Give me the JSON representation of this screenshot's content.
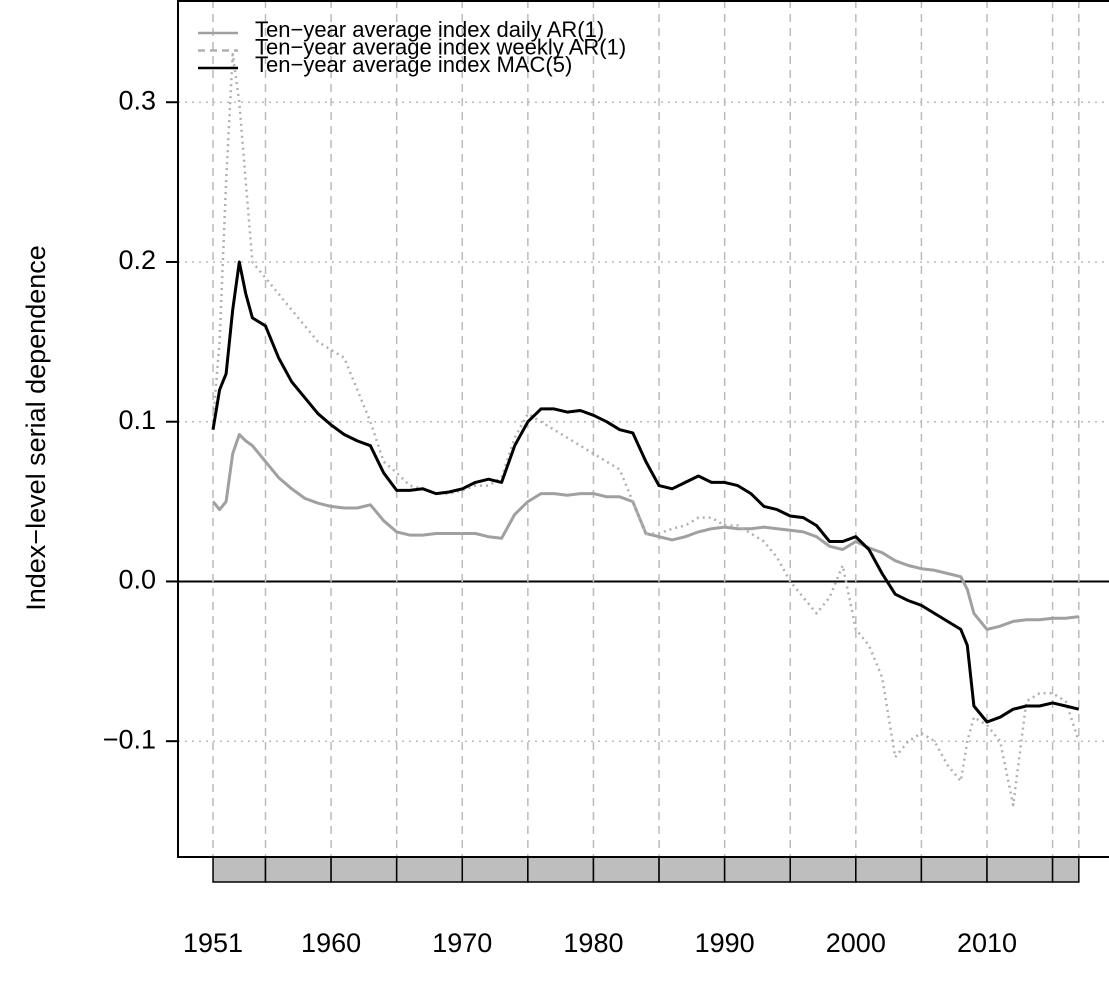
{
  "chart_data": {
    "type": "line",
    "y_label": "Index−level serial dependence",
    "x": [
      1951,
      1951.5,
      1952,
      1952.5,
      1953,
      1953.5,
      1954,
      1955,
      1956,
      1957,
      1958,
      1959,
      1960,
      1961,
      1962,
      1963,
      1964,
      1965,
      1966,
      1967,
      1968,
      1969,
      1970,
      1971,
      1972,
      1973,
      1974,
      1975,
      1976,
      1977,
      1978,
      1979,
      1980,
      1981,
      1982,
      1983,
      1984,
      1985,
      1986,
      1987,
      1988,
      1989,
      1990,
      1991,
      1992,
      1993,
      1994,
      1995,
      1996,
      1997,
      1998,
      1999,
      2000,
      2001,
      2002,
      2003,
      2004,
      2005,
      2006,
      2007,
      2008,
      2008.5,
      2009,
      2010,
      2011,
      2012,
      2013,
      2014,
      2015,
      2016,
      2017
    ],
    "series": [
      {
        "name": "Ten−year average index daily AR(1)",
        "color": "#a0a0a0",
        "linestyle": "solid",
        "values": [
          0.05,
          0.045,
          0.05,
          0.08,
          0.092,
          0.088,
          0.085,
          0.075,
          0.065,
          0.058,
          0.052,
          0.049,
          0.047,
          0.046,
          0.046,
          0.048,
          0.038,
          0.031,
          0.029,
          0.029,
          0.03,
          0.03,
          0.03,
          0.03,
          0.028,
          0.027,
          0.042,
          0.05,
          0.055,
          0.055,
          0.054,
          0.055,
          0.055,
          0.053,
          0.053,
          0.05,
          0.03,
          0.028,
          0.026,
          0.028,
          0.031,
          0.033,
          0.034,
          0.033,
          0.033,
          0.034,
          0.033,
          0.032,
          0.031,
          0.028,
          0.022,
          0.02,
          0.025,
          0.021,
          0.018,
          0.013,
          0.01,
          0.008,
          0.007,
          0.005,
          0.003,
          -0.005,
          -0.02,
          -0.03,
          -0.028,
          -0.025,
          -0.024,
          -0.024,
          -0.023,
          -0.023,
          -0.022
        ]
      },
      {
        "name": "Ten−year average index weekly AR(1)",
        "color": "#b0b0b0",
        "linestyle": "dotted",
        "values": [
          0.1,
          0.15,
          0.25,
          0.33,
          0.3,
          0.25,
          0.2,
          0.19,
          0.18,
          0.17,
          0.16,
          0.15,
          0.145,
          0.14,
          0.12,
          0.1,
          0.075,
          0.068,
          0.06,
          0.058,
          0.055,
          0.055,
          0.057,
          0.06,
          0.06,
          0.065,
          0.09,
          0.105,
          0.1,
          0.095,
          0.09,
          0.085,
          0.08,
          0.075,
          0.07,
          0.05,
          0.03,
          0.03,
          0.033,
          0.035,
          0.04,
          0.04,
          0.035,
          0.035,
          0.03,
          0.025,
          0.015,
          0.0,
          -0.01,
          -0.02,
          -0.01,
          0.01,
          -0.03,
          -0.04,
          -0.06,
          -0.11,
          -0.1,
          -0.095,
          -0.1,
          -0.115,
          -0.125,
          -0.1,
          -0.085,
          -0.09,
          -0.1,
          -0.14,
          -0.075,
          -0.07,
          -0.07,
          -0.075,
          -0.1
        ]
      },
      {
        "name": "Ten−year average index MAC(5)",
        "color": "#000000",
        "linestyle": "solid",
        "values": [
          0.095,
          0.12,
          0.13,
          0.17,
          0.2,
          0.18,
          0.165,
          0.16,
          0.14,
          0.125,
          0.115,
          0.105,
          0.098,
          0.092,
          0.088,
          0.085,
          0.068,
          0.057,
          0.057,
          0.058,
          0.055,
          0.056,
          0.058,
          0.062,
          0.064,
          0.062,
          0.085,
          0.1,
          0.108,
          0.108,
          0.106,
          0.107,
          0.104,
          0.1,
          0.095,
          0.093,
          0.075,
          0.06,
          0.058,
          0.062,
          0.066,
          0.062,
          0.062,
          0.06,
          0.055,
          0.047,
          0.045,
          0.041,
          0.04,
          0.035,
          0.025,
          0.025,
          0.028,
          0.02,
          0.005,
          -0.008,
          -0.012,
          -0.015,
          -0.02,
          -0.025,
          -0.03,
          -0.04,
          -0.078,
          -0.088,
          -0.085,
          -0.08,
          -0.078,
          -0.078,
          -0.076,
          -0.078,
          -0.08
        ]
      }
    ],
    "xlim": [
      1948.33,
      2019.3
    ],
    "xticks": [
      1951,
      1960,
      1970,
      1980,
      1990,
      2000,
      2010
    ],
    "xgrid": [
      1951,
      1955,
      1960,
      1965,
      1970,
      1975,
      1980,
      1985,
      1990,
      1995,
      2000,
      2005,
      2010,
      2015,
      2017
    ],
    "ylim": [
      -0.1725,
      0.364
    ],
    "yticks": [
      {
        "value": -0.1,
        "label": "−0.1"
      },
      {
        "value": 0,
        "label": "0.0"
      },
      0.1,
      0.2,
      0.3
    ],
    "grid": true,
    "legend": "top-left"
  }
}
